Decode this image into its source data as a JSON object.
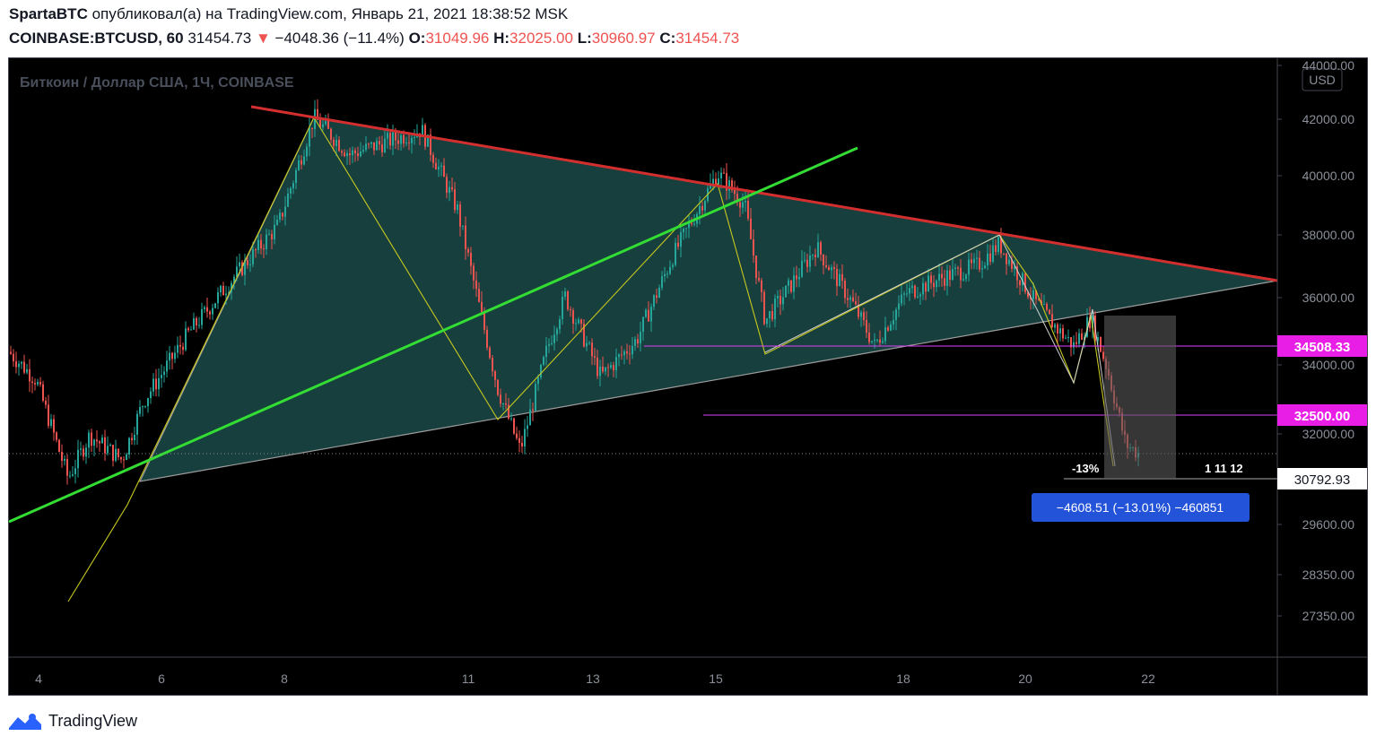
{
  "header": {
    "author": "SpartaBTC",
    "published_text": "опубликовал(а) на TradingView.com, Январь 21, 2021 18:38:52 MSK",
    "symbol": "COINBASE:BTCUSD, 60",
    "last": "31454.73",
    "arrow": "▼",
    "change": "−4048.36 (−11.4%)",
    "o_label": "O:",
    "o_value": "31049.96",
    "h_label": "H:",
    "h_value": "32025.00",
    "l_label": "L:",
    "l_value": "30960.97",
    "c_label": "C:",
    "c_value": "31454.73"
  },
  "chart_data": {
    "type": "candlestick",
    "title": "Биткоин / Доллар США, 1Ч, COINBASE",
    "currency": "USD",
    "x_ticks": [
      "4",
      "6",
      "8",
      "11",
      "13",
      "15",
      "18",
      "20",
      "22"
    ],
    "y_ticks": [
      44000,
      42000,
      40000,
      38000,
      36000,
      34000,
      32000,
      29600,
      28350,
      27350
    ],
    "y_tick_labels": [
      "44000.00",
      "42000.00",
      "40000.00",
      "38000.00",
      "36000.00",
      "34000.00",
      "32000.00",
      "29600.00",
      "28350.00",
      "27350.00"
    ],
    "horizontal_levels": [
      {
        "value": 34508.33,
        "label": "34508.33",
        "color": "#e040fb"
      },
      {
        "value": 32500.0,
        "label": "32500.00",
        "color": "#e040fb"
      }
    ],
    "current_price_label": "30792.93",
    "measure": {
      "percent_label": "-13%",
      "bars_label": "1 11 12",
      "tooltip": "−4608.51 (−13.01%) −460851"
    },
    "price_range": [
      30200,
      42000
    ],
    "colors": {
      "up": "#26a69a",
      "down": "#ef5350",
      "triangle_fill": "#1e5452",
      "resistance": "#d32f2f",
      "trend": "#33dd33",
      "wave": "#c8c820",
      "level": "#e040fb",
      "tooltip_bg": "#2962ff"
    }
  },
  "footer": {
    "brand": "TradingView"
  }
}
